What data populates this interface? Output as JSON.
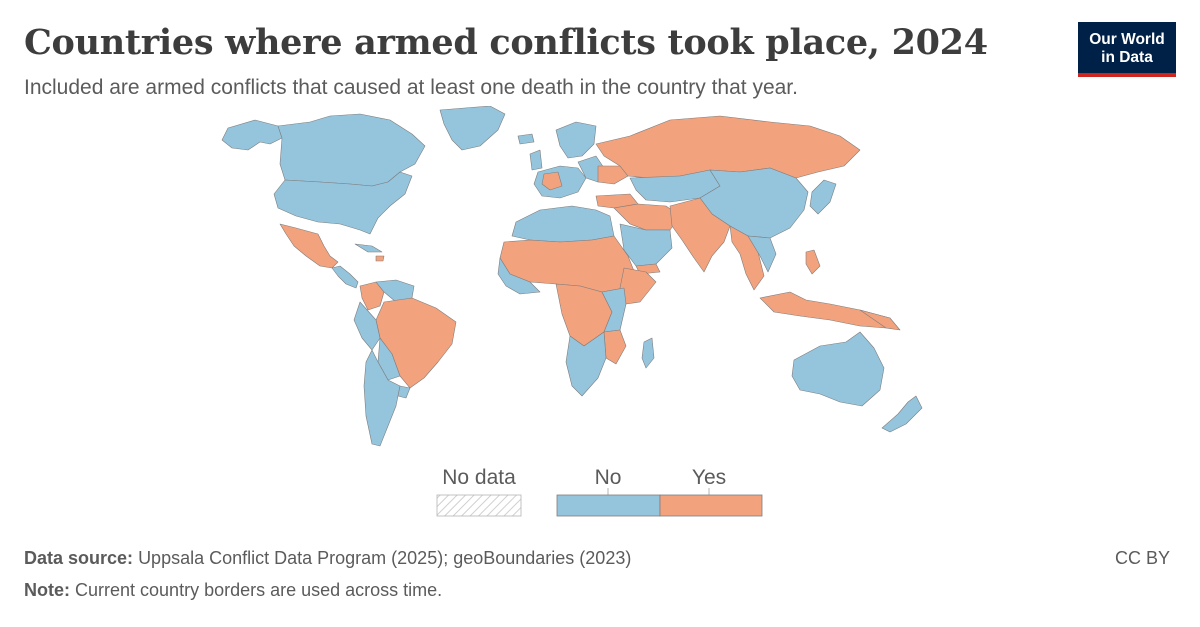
{
  "header": {
    "title": "Countries where armed conflicts took place, 2024",
    "subtitle": "Included are armed conflicts that caused at least one death in the country that year."
  },
  "logo": {
    "line1": "Our World",
    "line2": "in Data"
  },
  "legend": {
    "nodata_label": "No data",
    "no_label": "No",
    "yes_label": "Yes"
  },
  "colors": {
    "no": "#95c4dd",
    "yes": "#f2a27d",
    "border": "#7e7e7e"
  },
  "footer": {
    "source_label": "Data source:",
    "source_text": "Uppsala Conflict Data Program (2025); geoBoundaries (2023)",
    "note_label": "Note:",
    "note_text": "Current country borders are used across time.",
    "license": "CC BY"
  }
}
